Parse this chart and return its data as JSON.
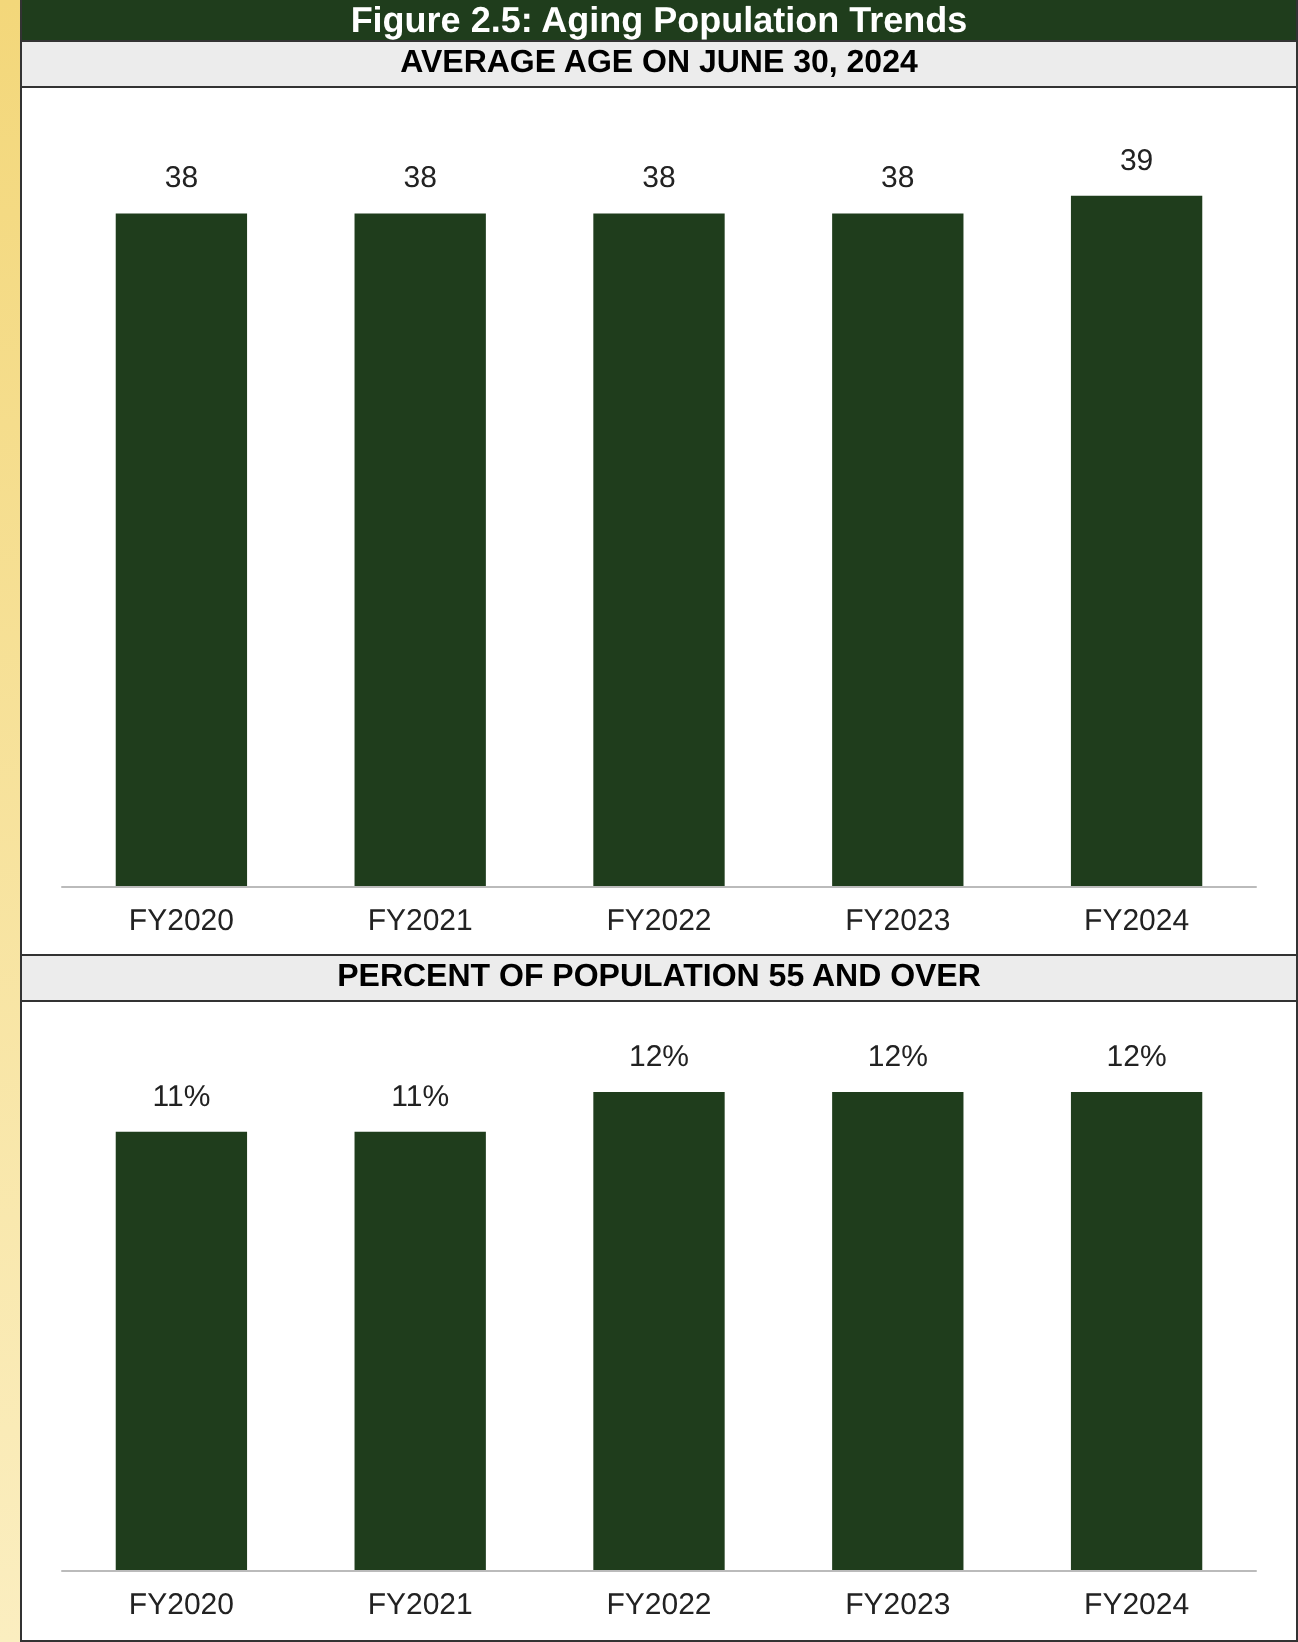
{
  "chart_data": [
    {
      "type": "bar",
      "title": "Figure 2.5: Aging Population Trends",
      "subtitle": "AVERAGE AGE ON JUNE 30, 2024",
      "categories": [
        "FY2020",
        "FY2021",
        "FY2022",
        "FY2023",
        "FY2024"
      ],
      "values": [
        38,
        38,
        38,
        38,
        39
      ],
      "color": "#1f3d1c",
      "data_labels": true
    },
    {
      "type": "bar",
      "subtitle": "PERCENT OF POPULATION 55 AND OVER",
      "categories": [
        "FY2020",
        "FY2021",
        "FY2022",
        "FY2023",
        "FY2024"
      ],
      "values": [
        11,
        11,
        12,
        12,
        12
      ],
      "value_labels": [
        "11%",
        "11%",
        "12%",
        "12%",
        "12%"
      ],
      "color": "#1f3d1c"
    }
  ]
}
